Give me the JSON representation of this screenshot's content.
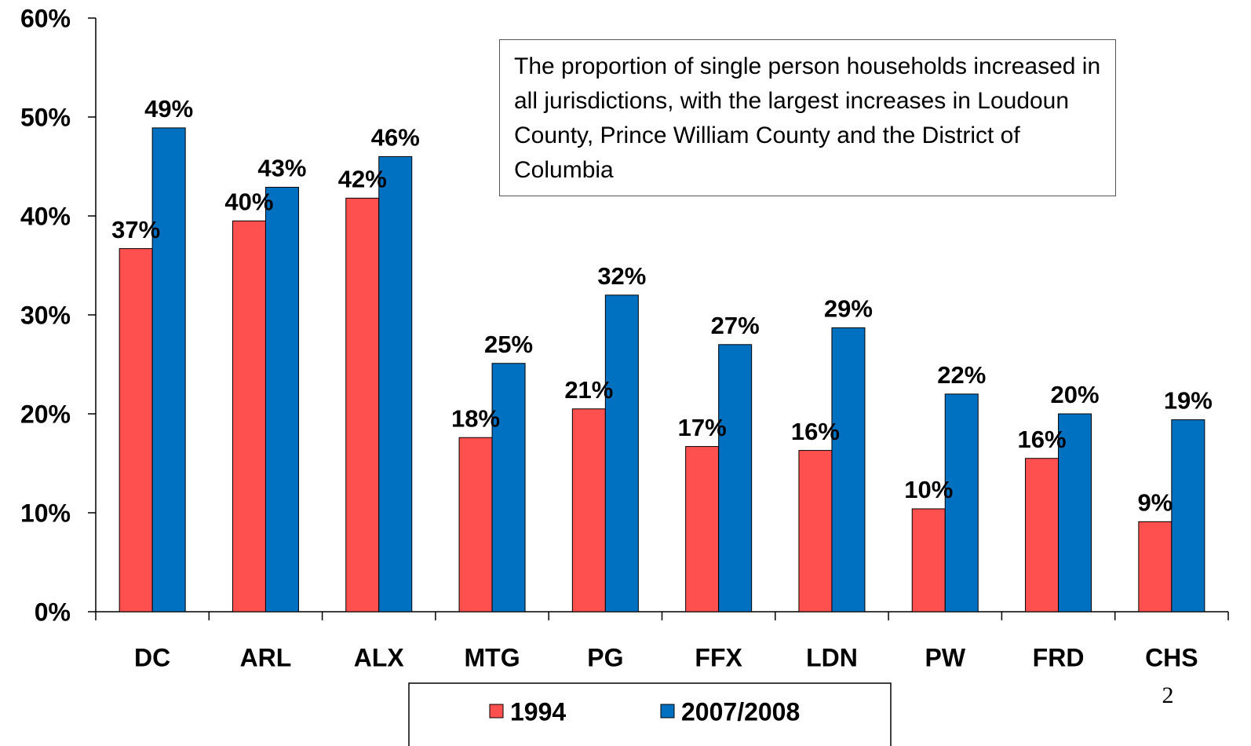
{
  "chart_data": {
    "type": "bar",
    "annotation": "The proportion of single person households increased in all jurisdictions, with the largest increases in Loudoun County, Prince William County and the District of Columbia",
    "categories": [
      "DC",
      "ARL",
      "ALX",
      "MTG",
      "PG",
      "FFX",
      "LDN",
      "PW",
      "FRD",
      "CHS"
    ],
    "series": [
      {
        "name": "1994",
        "color": "#ff5050",
        "values": [
          36.7,
          39.5,
          41.8,
          17.6,
          20.5,
          16.7,
          16.3,
          10.4,
          15.5,
          9.1
        ],
        "value_labels": [
          "37%",
          "40%",
          "42%",
          "18%",
          "21%",
          "17%",
          "16%",
          "10%",
          "16%",
          "9%"
        ]
      },
      {
        "name": "2007/2008",
        "color": "#0070c0",
        "values": [
          48.9,
          42.9,
          46.0,
          25.1,
          32.0,
          27.0,
          28.7,
          22.0,
          20.0,
          19.4
        ],
        "value_labels": [
          "49%",
          "43%",
          "46%",
          "25%",
          "32%",
          "27%",
          "29%",
          "22%",
          "20%",
          "19%"
        ]
      }
    ],
    "ylim": [
      0,
      60
    ],
    "yticks": [
      {
        "value": 0,
        "label": "0%"
      },
      {
        "value": 10,
        "label": "10%"
      },
      {
        "value": 20,
        "label": "20%"
      },
      {
        "value": 30,
        "label": "30%"
      },
      {
        "value": 40,
        "label": "40%"
      },
      {
        "value": 50,
        "label": "50%"
      },
      {
        "value": 60,
        "label": "60%"
      }
    ],
    "grid": false
  },
  "page_number": "2"
}
